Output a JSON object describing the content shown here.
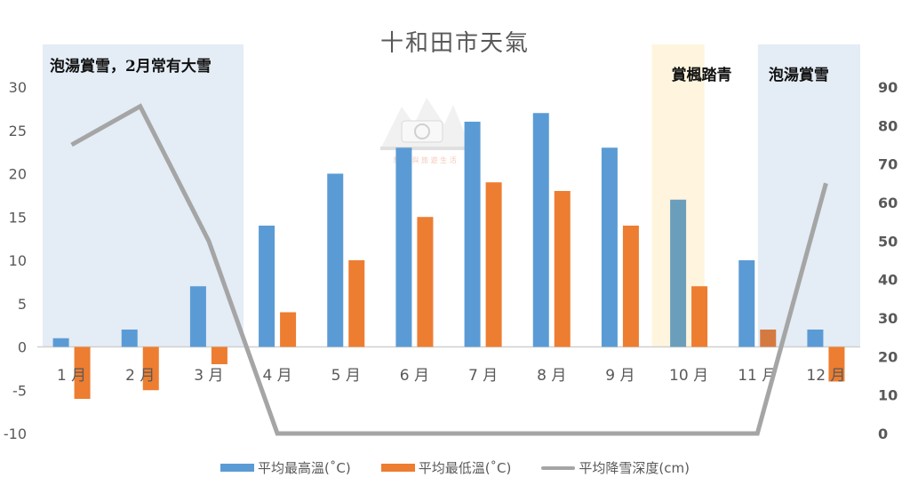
{
  "chart_data": {
    "type": "bar",
    "title": "十和田市天氣",
    "categories": [
      "1月",
      "2月",
      "3月",
      "4月",
      "5月",
      "6月",
      "7月",
      "8月",
      "9月",
      "10月",
      "11月",
      "12月"
    ],
    "series": [
      {
        "name": "平均最高溫(˚C)",
        "type": "bar",
        "axis": "left",
        "color": "#5B9BD5",
        "values": [
          1,
          2,
          7,
          14,
          20,
          23,
          26,
          27,
          23,
          17,
          10,
          2
        ]
      },
      {
        "name": "平均最低溫(˚C)",
        "type": "bar",
        "axis": "left",
        "color": "#ED7D31",
        "values": [
          -6,
          -5,
          -2,
          4,
          10,
          15,
          19,
          18,
          14,
          7,
          2,
          -4
        ]
      },
      {
        "name": "平均降雪深度(cm)",
        "type": "line",
        "axis": "right",
        "color": "#A5A5A5",
        "values": [
          75,
          85,
          50,
          0,
          0,
          0,
          0,
          0,
          0,
          0,
          0,
          65
        ]
      }
    ],
    "left_axis": {
      "ylim": [
        -10,
        30
      ],
      "ticks": [
        30,
        25,
        20,
        15,
        10,
        5,
        0,
        -5,
        -10
      ]
    },
    "right_axis": {
      "ylim": [
        0,
        90
      ],
      "ticks": [
        90,
        80,
        70,
        60,
        50,
        40,
        30,
        20,
        10,
        0
      ]
    },
    "annotations": [
      {
        "label": "泡湯賞雪，2月常有大雪",
        "span": [
          "1月",
          "3月"
        ],
        "color": "#E4ECF5"
      },
      {
        "label": "賞楓踏青",
        "span": [
          "10月",
          "10月"
        ],
        "color": "#FFF5DE"
      },
      {
        "label": "泡湯賞雪",
        "span": [
          "12月",
          "12月"
        ],
        "color": "#E4ECF5"
      }
    ],
    "legend_position": "bottom",
    "grid": false
  },
  "watermark": {
    "text": "無 法 與 旅 遊 生 活"
  }
}
